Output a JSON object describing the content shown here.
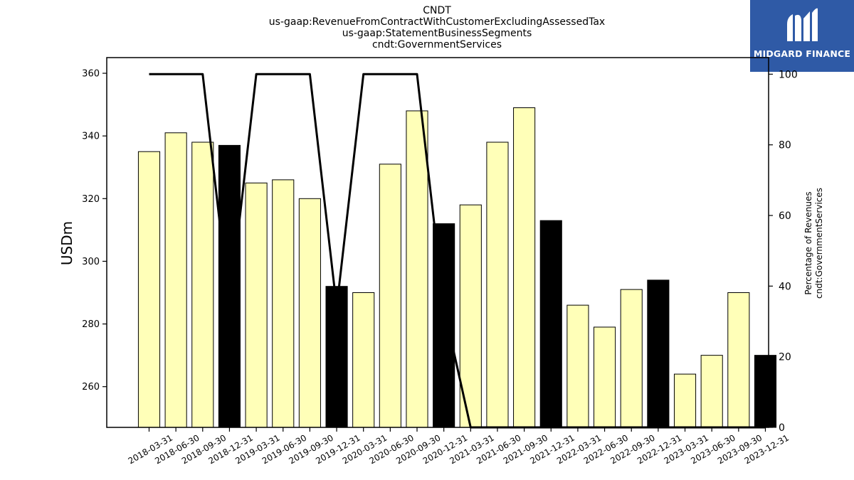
{
  "header": {
    "lines": [
      "CNDT",
      "us-gaap:RevenueFromContractWithCustomerExcludingAssessedTax",
      "us-gaap:StatementBusinessSegments",
      "cndt:GovernmentServices"
    ]
  },
  "logo": {
    "text": "MIDGARD FINANCE",
    "background": "#2f5aa6"
  },
  "chart_data": {
    "type": "bar",
    "title": "CNDT\nus-gaap:RevenueFromContractWithCustomerExcludingAssessedTax\nus-gaap:StatementBusinessSegments\ncndt:GovernmentServices",
    "ylabel": "USDm",
    "y2label": [
      "Percentage of Revenues",
      "cndt:GovernmentServices"
    ],
    "ylim": [
      247,
      365
    ],
    "y2lim": [
      0,
      104.7
    ],
    "yticks": [
      260,
      280,
      300,
      320,
      340,
      360
    ],
    "y2ticks": [
      0,
      20,
      40,
      60,
      80,
      100
    ],
    "categories": [
      "2018-03-31",
      "2018-06-30",
      "2018-09-30",
      "2018-12-31",
      "2019-03-31",
      "2019-06-30",
      "2019-09-30",
      "2019-12-31",
      "2020-03-31",
      "2020-06-30",
      "2020-09-30",
      "2020-12-31",
      "2021-03-31",
      "2021-06-30",
      "2021-09-30",
      "2021-12-31",
      "2022-03-31",
      "2022-06-30",
      "2022-09-30",
      "2022-12-31",
      "2023-03-31",
      "2023-06-30",
      "2023-09-30",
      "2023-12-31"
    ],
    "values": [
      335,
      341,
      338,
      337,
      325,
      326,
      320,
      292,
      290,
      331,
      348,
      312,
      318,
      338,
      349,
      313,
      286,
      279,
      291,
      294,
      264,
      270,
      290,
      270
    ],
    "bar_colors": [
      "#ffffb8",
      "#ffffb8",
      "#ffffb8",
      "#000000",
      "#ffffb8",
      "#ffffb8",
      "#ffffb8",
      "#000000",
      "#ffffb8",
      "#ffffb8",
      "#ffffb8",
      "#000000",
      "#ffffb8",
      "#ffffb8",
      "#ffffb8",
      "#000000",
      "#ffffb8",
      "#ffffb8",
      "#ffffb8",
      "#000000",
      "#ffffb8",
      "#ffffb8",
      "#ffffb8",
      "#000000"
    ],
    "percentage_series": {
      "values": [
        100,
        100,
        100,
        34,
        100,
        100,
        100,
        34,
        100,
        100,
        100,
        34,
        0,
        0,
        0,
        0,
        0,
        0,
        0,
        0,
        0,
        0,
        0,
        0
      ],
      "color": "#000000"
    },
    "grid": false,
    "legend": "none"
  }
}
